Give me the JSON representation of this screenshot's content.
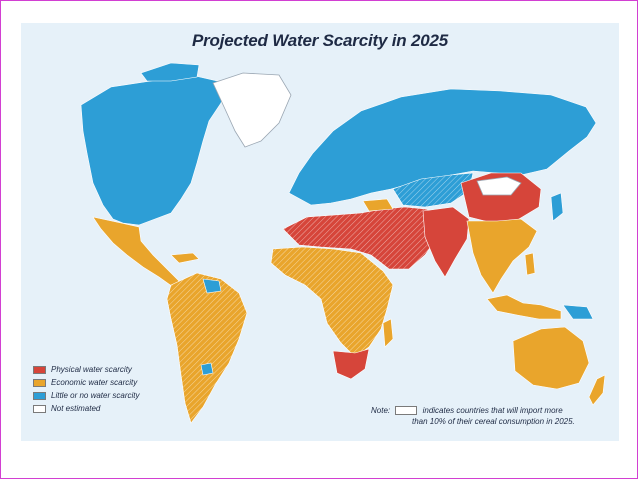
{
  "title": "Projected Water Scarcity in 2025",
  "colors": {
    "physical": "#d6453a",
    "economic": "#e9a52c",
    "little": "#2d9ed6",
    "not_estimated": "#ffffff",
    "ocean": "#e6f1f9",
    "frame": "#d23fd2"
  },
  "legend": [
    {
      "label": "Physical water scarcity",
      "color": "#d6453a"
    },
    {
      "label": "Economic water scarcity",
      "color": "#e9a52c"
    },
    {
      "label": "Little or no water scarcity",
      "color": "#2d9ed6"
    },
    {
      "label": "Not estimated",
      "color": "#ffffff"
    }
  ],
  "note": {
    "prefix": "Note:",
    "line1": "indicates countries that will import more",
    "line2": "than 10% of their cereal consumption in 2025."
  }
}
